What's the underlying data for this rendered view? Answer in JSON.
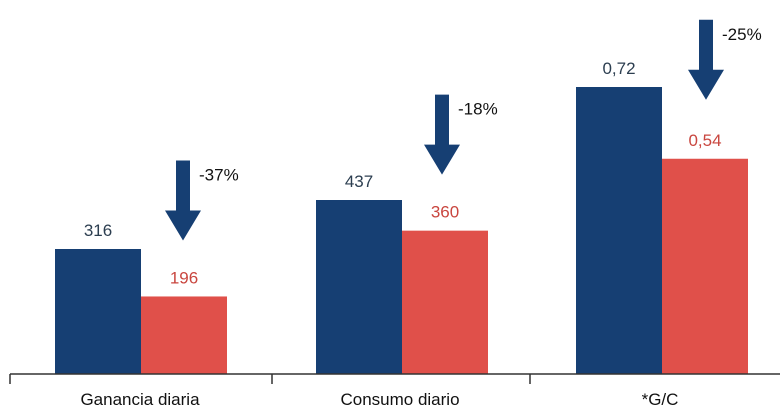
{
  "chart_data": {
    "type": "bar",
    "groups": [
      {
        "category": "Ganancia diaria",
        "values": [
          316,
          196
        ],
        "labels": [
          "316",
          "196"
        ],
        "change": "-37%"
      },
      {
        "category": "Consumo diario",
        "values": [
          437,
          360
        ],
        "labels": [
          "437",
          "360"
        ],
        "change": "-18%"
      },
      {
        "category": "*G/C",
        "values": [
          0.72,
          0.54
        ],
        "labels": [
          "0,72",
          "0,54"
        ],
        "change": "-25%"
      }
    ],
    "series_colors": [
      "#163f73",
      "#e0504a"
    ],
    "label_colors": [
      "#2c3e50",
      "#c9463f"
    ],
    "arrow_color": "#163f73",
    "axis_color": "#333333"
  }
}
